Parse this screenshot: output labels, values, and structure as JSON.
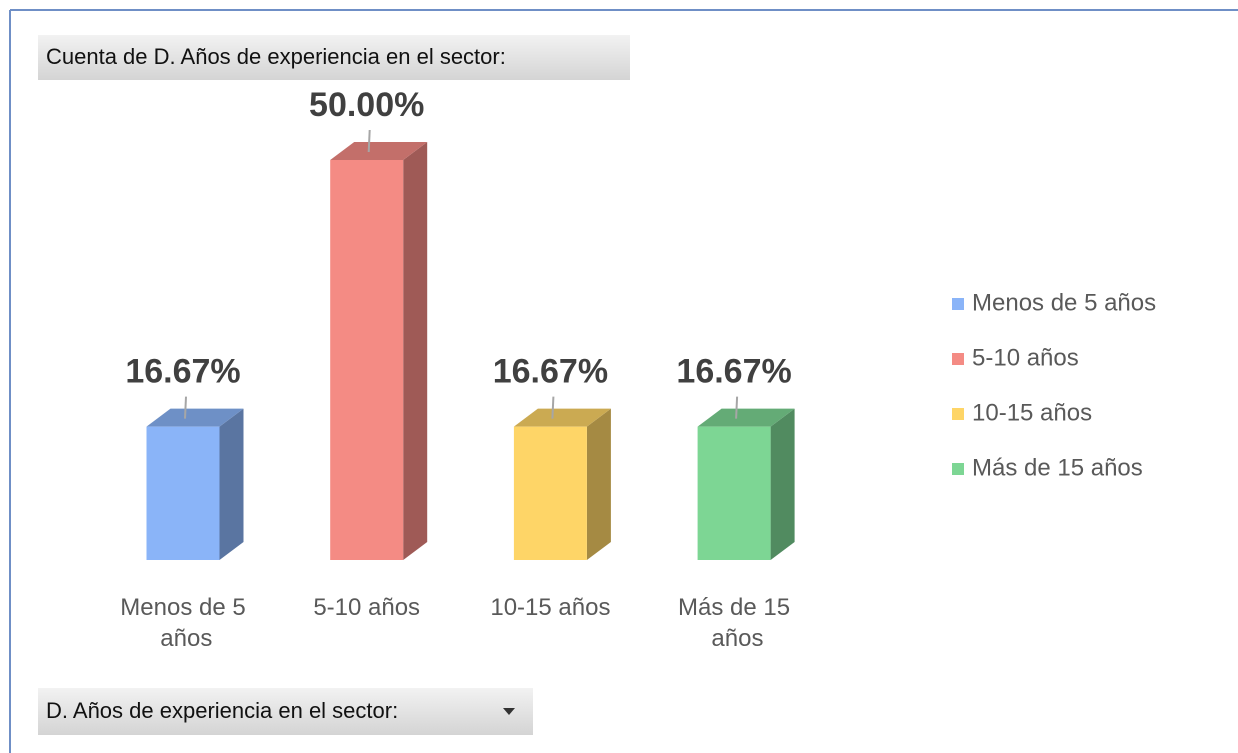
{
  "value_field_button": "Cuenta de D. Años de experiencia en el sector:",
  "axis_field_button": "D. Años de experiencia en el sector:",
  "chart_data": {
    "type": "bar3d",
    "categories": [
      "Menos de 5 años",
      "5-10 años",
      "10-15 años",
      "Más de 15 años"
    ],
    "values": [
      16.67,
      50,
      16.67,
      16.67
    ],
    "value_labels": [
      "16.67%",
      "50.00%",
      "16.67%",
      "16.67%"
    ],
    "colors": [
      "#8ab4f8",
      "#f48b84",
      "#fed567",
      "#7dd694"
    ],
    "legend": "right"
  }
}
